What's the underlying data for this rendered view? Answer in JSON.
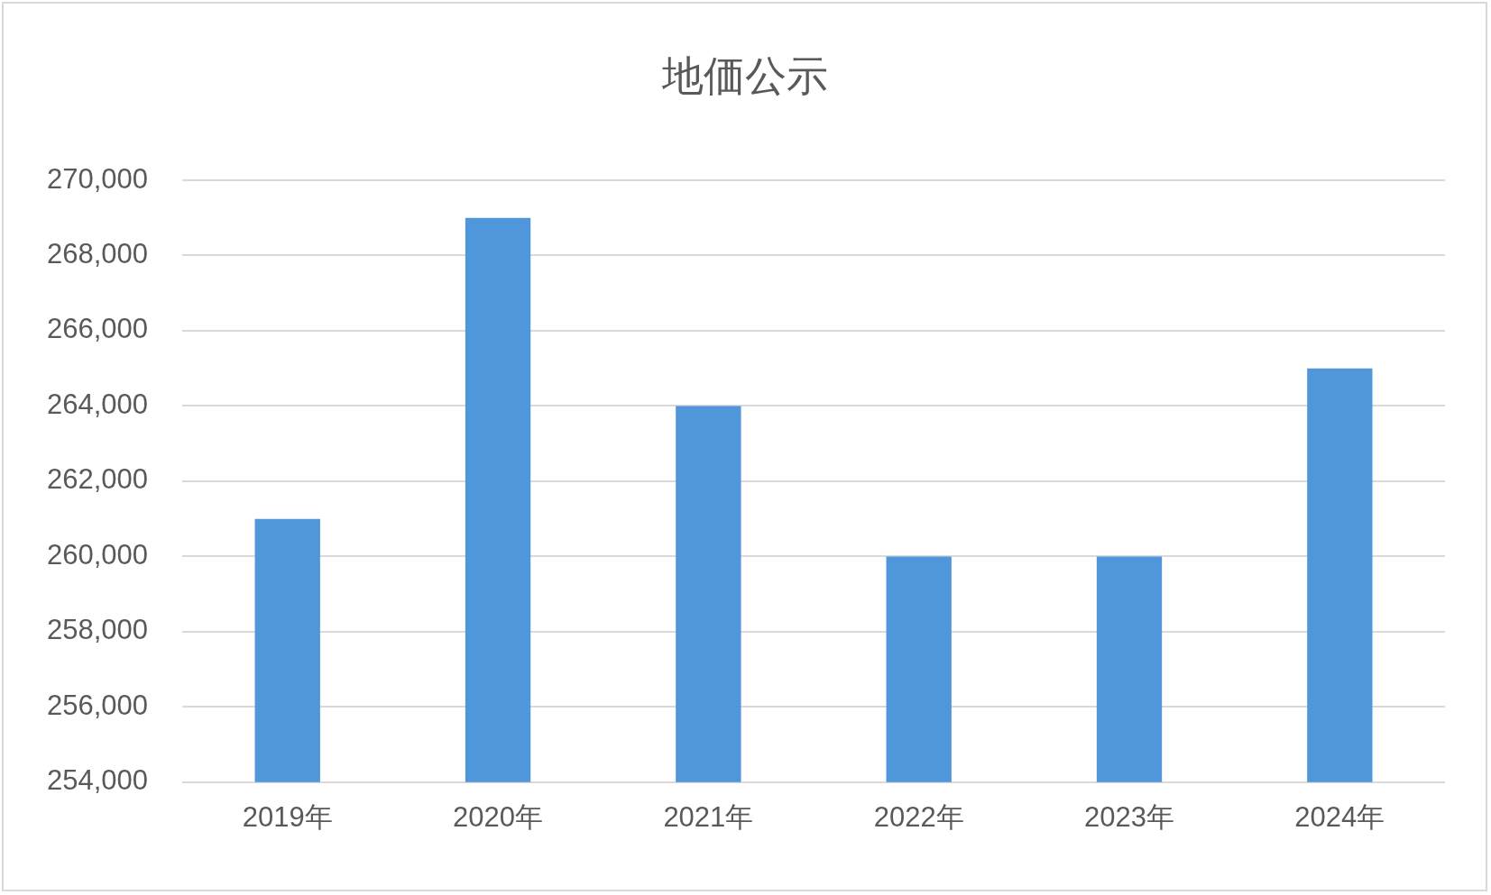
{
  "chart_data": {
    "type": "bar",
    "title": "地価公示",
    "categories": [
      "2019年",
      "2020年",
      "2021年",
      "2022年",
      "2023年",
      "2024年"
    ],
    "values": [
      261000,
      269000,
      264000,
      260000,
      260000,
      265000
    ],
    "color": "#4f96da",
    "ylim": [
      254000,
      270000
    ],
    "yticks": [
      {
        "value": 254000,
        "label": "254,000"
      },
      {
        "value": 256000,
        "label": "256,000"
      },
      {
        "value": 258000,
        "label": "258,000"
      },
      {
        "value": 260000,
        "label": "260,000"
      },
      {
        "value": 262000,
        "label": "262,000"
      },
      {
        "value": 264000,
        "label": "264,000"
      },
      {
        "value": 266000,
        "label": "266,000"
      },
      {
        "value": 268000,
        "label": "268,000"
      },
      {
        "value": 270000,
        "label": "270,000"
      }
    ],
    "grid": "y",
    "legend": false
  }
}
